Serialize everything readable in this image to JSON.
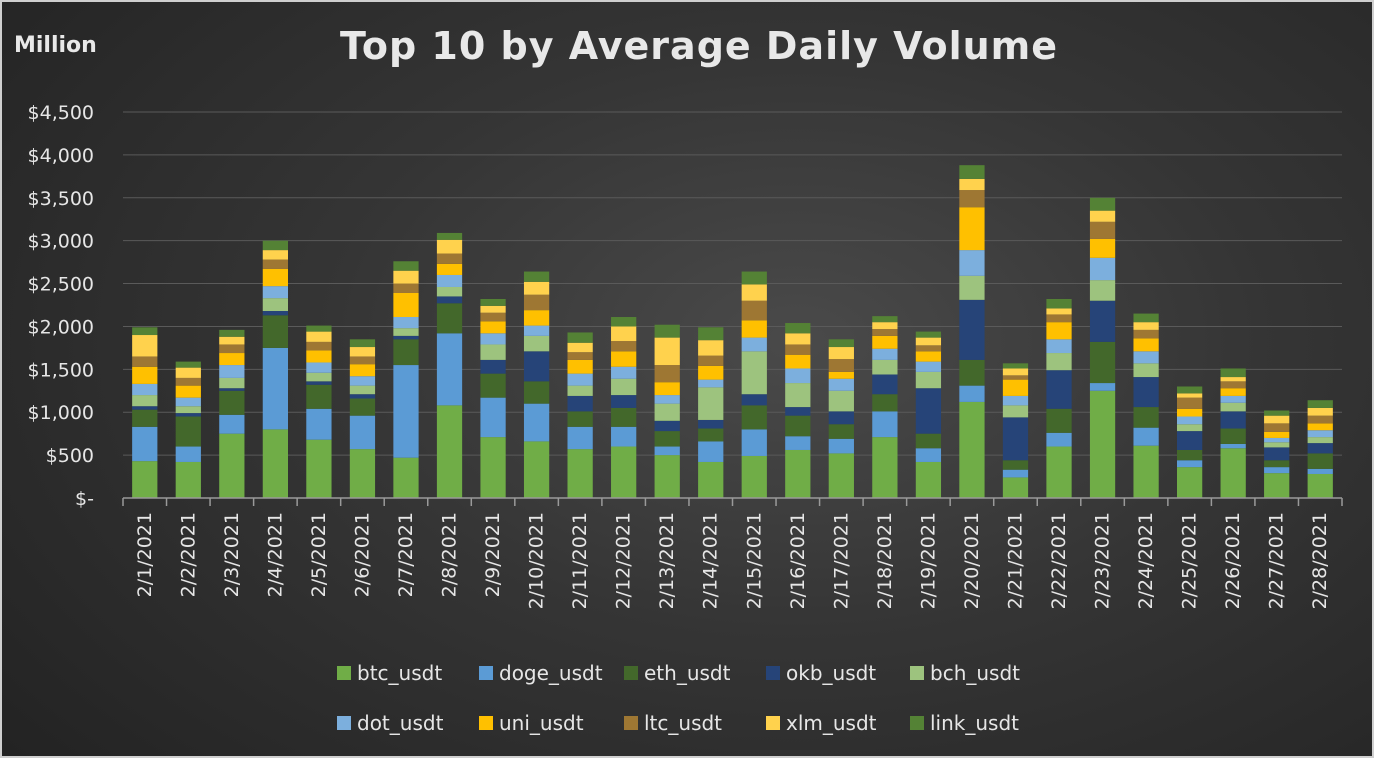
{
  "chart_data": {
    "type": "bar",
    "stacked": true,
    "title": "Top 10 by Average Daily Volume",
    "unit_label": "Million",
    "ylim": [
      0,
      4500
    ],
    "yticks": [
      0,
      500,
      1000,
      1500,
      2000,
      2500,
      3000,
      3500,
      4000,
      4500
    ],
    "ytick_labels": [
      "$-",
      "$500",
      "$1,000",
      "$1,500",
      "$2,000",
      "$2,500",
      "$3,000",
      "$3,500",
      "$4,000",
      "$4,500"
    ],
    "grid": true,
    "legend_position": "bottom",
    "categories": [
      "2/1/2021",
      "2/2/2021",
      "2/3/2021",
      "2/4/2021",
      "2/5/2021",
      "2/6/2021",
      "2/7/2021",
      "2/8/2021",
      "2/9/2021",
      "2/10/2021",
      "2/11/2021",
      "2/12/2021",
      "2/13/2021",
      "2/14/2021",
      "2/15/2021",
      "2/16/2021",
      "2/17/2021",
      "2/18/2021",
      "2/19/2021",
      "2/20/2021",
      "2/21/2021",
      "2/22/2021",
      "2/23/2021",
      "2/24/2021",
      "2/25/2021",
      "2/26/2021",
      "2/27/2021",
      "2/28/2021"
    ],
    "series": [
      {
        "name": "btc_usdt",
        "color": "#70ad47",
        "values": [
          430,
          420,
          750,
          800,
          680,
          570,
          470,
          1080,
          710,
          660,
          570,
          600,
          500,
          420,
          490,
          560,
          520,
          710,
          420,
          1120,
          240,
          600,
          1250,
          610,
          360,
          580,
          290,
          280
        ]
      },
      {
        "name": "doge_usdt",
        "color": "#5b9bd5",
        "values": [
          400,
          180,
          220,
          950,
          360,
          390,
          1080,
          840,
          460,
          440,
          260,
          230,
          100,
          240,
          310,
          160,
          170,
          300,
          160,
          190,
          90,
          160,
          90,
          210,
          80,
          50,
          70,
          60
        ]
      },
      {
        "name": "eth_usdt",
        "color": "#43682b",
        "values": [
          200,
          350,
          280,
          380,
          280,
          200,
          300,
          350,
          280,
          260,
          180,
          220,
          180,
          150,
          280,
          240,
          170,
          200,
          170,
          300,
          110,
          280,
          480,
          240,
          120,
          180,
          80,
          180
        ]
      },
      {
        "name": "okb_usdt",
        "color": "#264478",
        "values": [
          40,
          40,
          30,
          50,
          40,
          50,
          40,
          80,
          160,
          350,
          180,
          150,
          120,
          100,
          130,
          100,
          150,
          230,
          530,
          700,
          500,
          450,
          480,
          350,
          220,
          200,
          150,
          120
        ]
      },
      {
        "name": "bch_usdt",
        "color": "#9dc37e",
        "values": [
          130,
          80,
          120,
          150,
          100,
          100,
          90,
          110,
          180,
          180,
          120,
          190,
          200,
          380,
          500,
          280,
          240,
          170,
          190,
          280,
          140,
          200,
          240,
          160,
          80,
          100,
          60,
          70
        ]
      },
      {
        "name": "dot_usdt",
        "color": "#7cafdd",
        "values": [
          130,
          100,
          150,
          140,
          120,
          110,
          130,
          140,
          130,
          120,
          140,
          140,
          100,
          90,
          160,
          170,
          140,
          130,
          120,
          300,
          110,
          160,
          260,
          140,
          90,
          80,
          50,
          80
        ]
      },
      {
        "name": "uni_usdt",
        "color": "#ffc000",
        "values": [
          200,
          140,
          140,
          200,
          140,
          140,
          280,
          130,
          140,
          180,
          160,
          180,
          150,
          160,
          200,
          160,
          80,
          150,
          120,
          500,
          190,
          200,
          220,
          150,
          90,
          90,
          70,
          80
        ]
      },
      {
        "name": "ltc_usdt",
        "color": "#9e7733",
        "values": [
          120,
          90,
          100,
          110,
          100,
          90,
          110,
          120,
          100,
          180,
          90,
          120,
          200,
          120,
          230,
          120,
          150,
          80,
          70,
          200,
          50,
          90,
          200,
          100,
          130,
          80,
          100,
          90
        ]
      },
      {
        "name": "xlm_usdt",
        "color": "#ffd24d",
        "values": [
          250,
          120,
          90,
          110,
          120,
          110,
          150,
          160,
          80,
          150,
          110,
          170,
          320,
          180,
          190,
          130,
          140,
          80,
          90,
          130,
          80,
          70,
          130,
          90,
          50,
          50,
          90,
          90
        ]
      },
      {
        "name": "link_usdt",
        "color": "#548235",
        "values": [
          90,
          70,
          80,
          110,
          70,
          90,
          110,
          80,
          80,
          120,
          120,
          110,
          150,
          150,
          150,
          120,
          90,
          70,
          70,
          160,
          60,
          110,
          150,
          100,
          80,
          100,
          60,
          90
        ]
      }
    ]
  }
}
